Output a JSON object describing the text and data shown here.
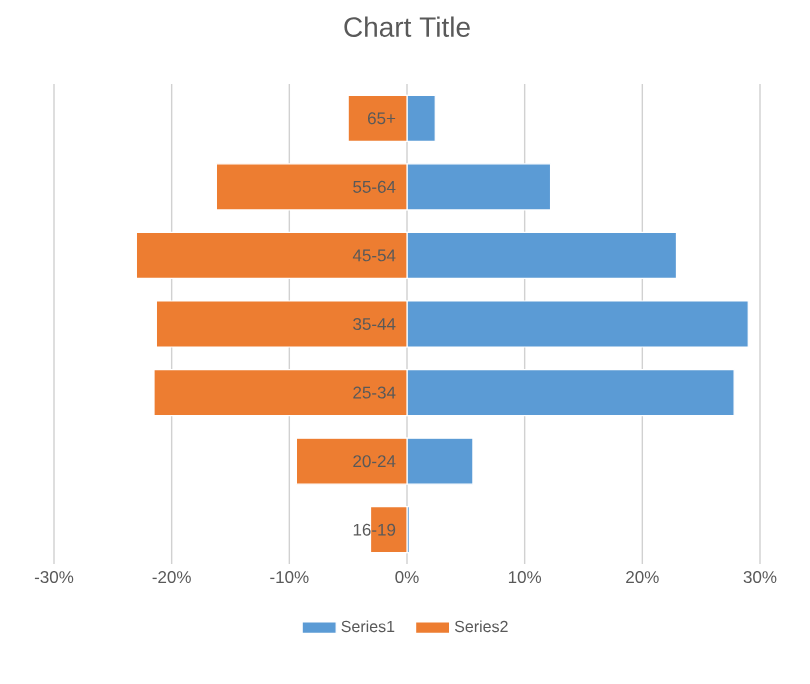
{
  "chart_data": {
    "type": "bar",
    "orientation": "horizontal",
    "title": "Chart Title",
    "categories": [
      "65+",
      "55-64",
      "45-54",
      "35-44",
      "25-34",
      "20-24",
      "16-19"
    ],
    "series": [
      {
        "name": "Series1",
        "color": "#5b9bd5",
        "values": [
          2.4,
          12.2,
          22.9,
          29.0,
          27.8,
          5.6,
          0.2
        ]
      },
      {
        "name": "Series2",
        "color": "#ed7d31",
        "values": [
          -5.0,
          -16.2,
          -23.0,
          -21.3,
          -21.5,
          -9.4,
          -3.1
        ]
      }
    ],
    "xlim": [
      -30,
      30
    ],
    "xticks": [
      {
        "value": -30,
        "label": "-30%"
      },
      {
        "value": -20,
        "label": "-20%"
      },
      {
        "value": -10,
        "label": "-10%"
      },
      {
        "value": 0,
        "label": "0%"
      },
      {
        "value": 10,
        "label": "10%"
      },
      {
        "value": 20,
        "label": "20%"
      },
      {
        "value": 30,
        "label": "30%"
      }
    ],
    "grid": "x",
    "legend": "bottom",
    "stacked": true
  }
}
